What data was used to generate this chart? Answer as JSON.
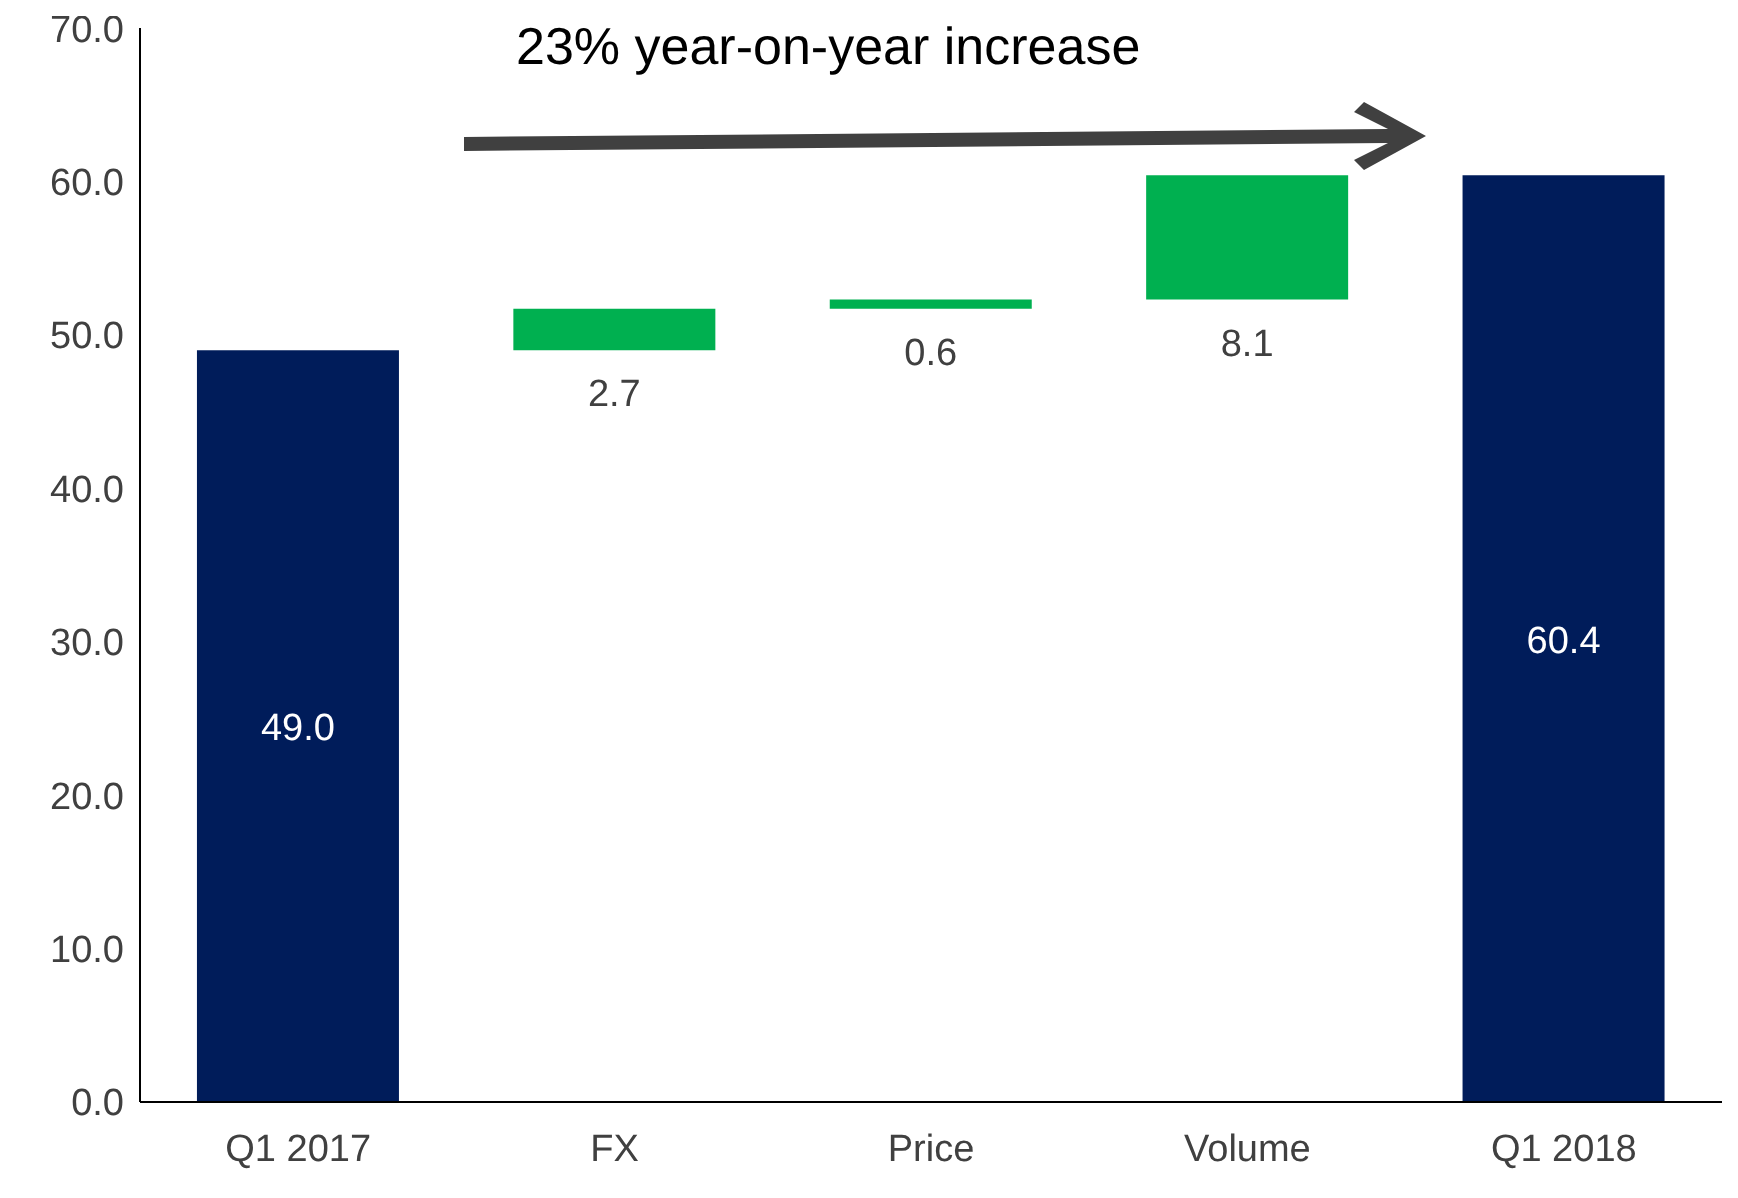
{
  "chart_data": {
    "type": "bar",
    "categories": [
      "Q1 2017",
      "FX",
      "Price",
      "Volume",
      "Q1 2018"
    ],
    "values": [
      49.0,
      2.7,
      0.6,
      8.1,
      60.4
    ],
    "base": [
      0,
      49.0,
      51.7,
      52.3,
      0
    ],
    "colors": [
      "#001c5a",
      "#00b050",
      "#00b050",
      "#00b050",
      "#001c5a"
    ],
    "value_labels": [
      "49.0",
      "2.7",
      "0.6",
      "8.1",
      "60.4"
    ],
    "ylim": [
      0,
      70
    ],
    "yticks": [
      {
        "value": 0,
        "label": "0.0"
      },
      {
        "value": 10,
        "label": "10.0"
      },
      {
        "value": 20,
        "label": "20.0"
      },
      {
        "value": 30,
        "label": "30.0"
      },
      {
        "value": 40,
        "label": "40.0"
      },
      {
        "value": 50,
        "label": "50.0"
      },
      {
        "value": 60,
        "label": "60.0"
      },
      {
        "value": 70,
        "label": "70.0"
      }
    ],
    "annotations": [
      "23% year-on-year increase"
    ],
    "grid": false,
    "legend": false
  }
}
